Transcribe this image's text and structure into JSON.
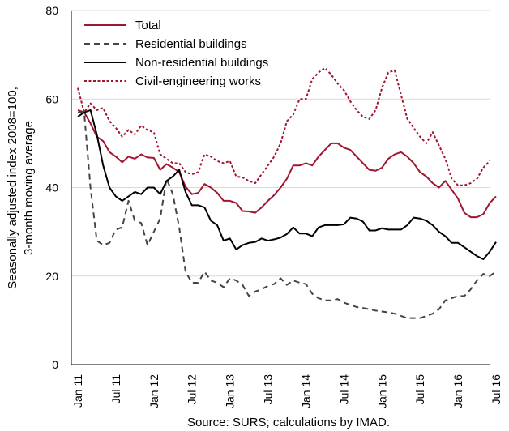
{
  "chart_data": {
    "type": "line",
    "title": "",
    "ylabel_lines": [
      "Seasonally adjusted index 2008=100,",
      "3-month moving average"
    ],
    "source": "Source: SURS; calculations by IMAD.",
    "ylim": [
      0,
      80
    ],
    "yticks": [
      0,
      20,
      40,
      60,
      80
    ],
    "xlim": [
      0,
      66
    ],
    "xticks": [
      {
        "label": "Jan 11",
        "x": 0
      },
      {
        "label": "Jul 11",
        "x": 6
      },
      {
        "label": "Jan 12",
        "x": 12
      },
      {
        "label": "Jul 12",
        "x": 18
      },
      {
        "label": "Jan 13",
        "x": 24
      },
      {
        "label": "Jul 13",
        "x": 30
      },
      {
        "label": "Jan 14",
        "x": 36
      },
      {
        "label": "Jul 14",
        "x": 42
      },
      {
        "label": "Jan 15",
        "x": 48
      },
      {
        "label": "Jul 15",
        "x": 54
      },
      {
        "label": "Jan 16",
        "x": 60
      },
      {
        "label": "Jul 16",
        "x": 66
      }
    ],
    "grid": "horizontal",
    "legend_position": "top-left",
    "series": [
      {
        "name": "Total",
        "color": "#a0162e",
        "dash": "solid",
        "values": [
          57.5,
          57,
          54.5,
          51.5,
          50.5,
          48,
          47,
          45.7,
          47,
          46.5,
          47.5,
          46.8,
          46.7,
          44,
          45.3,
          44.5,
          43.5,
          40.2,
          38.5,
          38.8,
          40.8,
          40,
          38.8,
          37,
          37,
          36.5,
          34.7,
          34.6,
          34.3,
          35.5,
          37,
          38.3,
          40,
          42,
          45,
          45,
          45.5,
          45,
          47,
          48.5,
          50,
          50,
          49,
          48.5,
          47,
          45.5,
          44,
          43.8,
          44.5,
          46.5,
          47.5,
          48,
          47,
          45.5,
          43.5,
          42.5,
          41,
          40,
          41.5,
          39.5,
          37.5,
          34.3,
          33.3,
          33.3,
          34,
          36.5,
          38
        ]
      },
      {
        "name": "Residential buildings",
        "color": "#454545",
        "dash": "dashed",
        "values": [
          57,
          57,
          40,
          28,
          27,
          27.5,
          30.5,
          31,
          37,
          32.5,
          32,
          27,
          30,
          33,
          42,
          38.5,
          31,
          21,
          18.5,
          18.5,
          21,
          19,
          18.5,
          17.5,
          19.5,
          19,
          18,
          15.5,
          16.5,
          17,
          17.8,
          18.2,
          19.5,
          18,
          19,
          18.5,
          18.2,
          16,
          15,
          14.5,
          14.5,
          14.8,
          14,
          13.5,
          13,
          12.8,
          12.5,
          12.2,
          12,
          11.8,
          11.5,
          11,
          10.5,
          10.5,
          10.5,
          11,
          11.5,
          12.5,
          14.5,
          15,
          15.5,
          15.5,
          17,
          19,
          20.5,
          20,
          21
        ]
      },
      {
        "name": "Non-residential buildings",
        "color": "#000000",
        "dash": "solid",
        "values": [
          56,
          57,
          57.5,
          52,
          45,
          40,
          38,
          37,
          38,
          39,
          38.5,
          40,
          40,
          38.5,
          41.5,
          42.5,
          44,
          39,
          36,
          36,
          35.5,
          32.5,
          31.5,
          28,
          28.5,
          26,
          27,
          27.5,
          27.7,
          28.5,
          28,
          28.3,
          28.7,
          29.5,
          31,
          29.6,
          29.6,
          29,
          31,
          31.5,
          31.5,
          31.5,
          31.7,
          33.2,
          33,
          32.3,
          30.3,
          30.3,
          30.8,
          30.5,
          30.5,
          30.5,
          31.5,
          33.2,
          33,
          32.5,
          31.5,
          30,
          29,
          27.5,
          27.5,
          26.5,
          25.5,
          24.5,
          23.8,
          25.5,
          27.7
        ]
      },
      {
        "name": "Civil-engineering works",
        "color": "#a0162e",
        "dash": "dotted",
        "values": [
          62.5,
          57,
          59,
          57.5,
          58,
          55,
          53.5,
          51.5,
          53,
          52,
          54,
          53,
          52.5,
          47.5,
          46.5,
          45.5,
          45.5,
          43.5,
          43,
          43.5,
          47.5,
          47,
          46,
          45.5,
          46,
          42.5,
          42.3,
          41.5,
          41,
          43,
          45,
          47,
          50,
          55,
          56.5,
          60,
          60,
          64.5,
          66,
          67,
          65.5,
          63.5,
          62,
          59.5,
          57.5,
          56,
          55.5,
          57.5,
          62.5,
          66,
          66.5,
          61,
          55.5,
          53.5,
          51.5,
          50,
          52.5,
          49.5,
          46.5,
          42,
          40.5,
          40.5,
          41,
          42,
          44.5,
          46
        ]
      }
    ]
  }
}
